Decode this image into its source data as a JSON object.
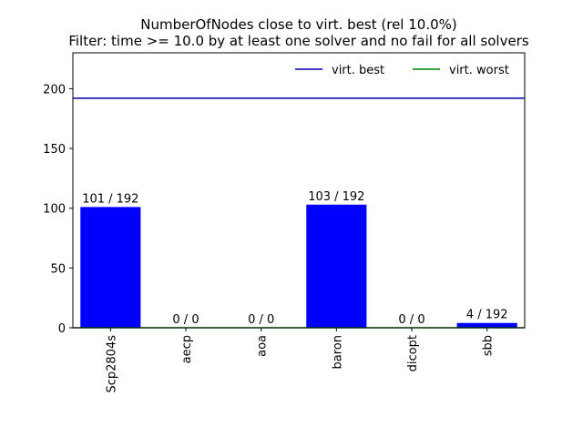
{
  "chart_data": {
    "type": "bar",
    "title": "NumberOfNodes close to virt. best (rel 10.0%)",
    "subtitle": "Filter: time >= 10.0 by at least one solver and no fail for all solvers",
    "xlabel": "",
    "ylabel": "",
    "categories": [
      "Scp2804s",
      "aecp",
      "aoa",
      "baron",
      "dicopt",
      "sbb"
    ],
    "values": [
      101,
      0,
      0,
      103,
      0,
      4
    ],
    "data_labels": [
      "101 / 192",
      "0 / 0",
      "0 / 0",
      "103 / 192",
      "0 / 0",
      "4 / 192"
    ],
    "ylim": [
      0,
      230
    ],
    "yticks": [
      0,
      50,
      100,
      150,
      200
    ],
    "bar_color": "#0000ff",
    "reference_lines": [
      {
        "name": "virt. best",
        "value": 192,
        "color": "#0000b0"
      },
      {
        "name": "virt. worst",
        "value": 0,
        "color": "#008000"
      }
    ],
    "legend": {
      "placement": "top-right",
      "entries": [
        {
          "label": "virt. best",
          "color": "#0000b0"
        },
        {
          "label": "virt. worst",
          "color": "#008000"
        }
      ]
    },
    "grid": false
  }
}
